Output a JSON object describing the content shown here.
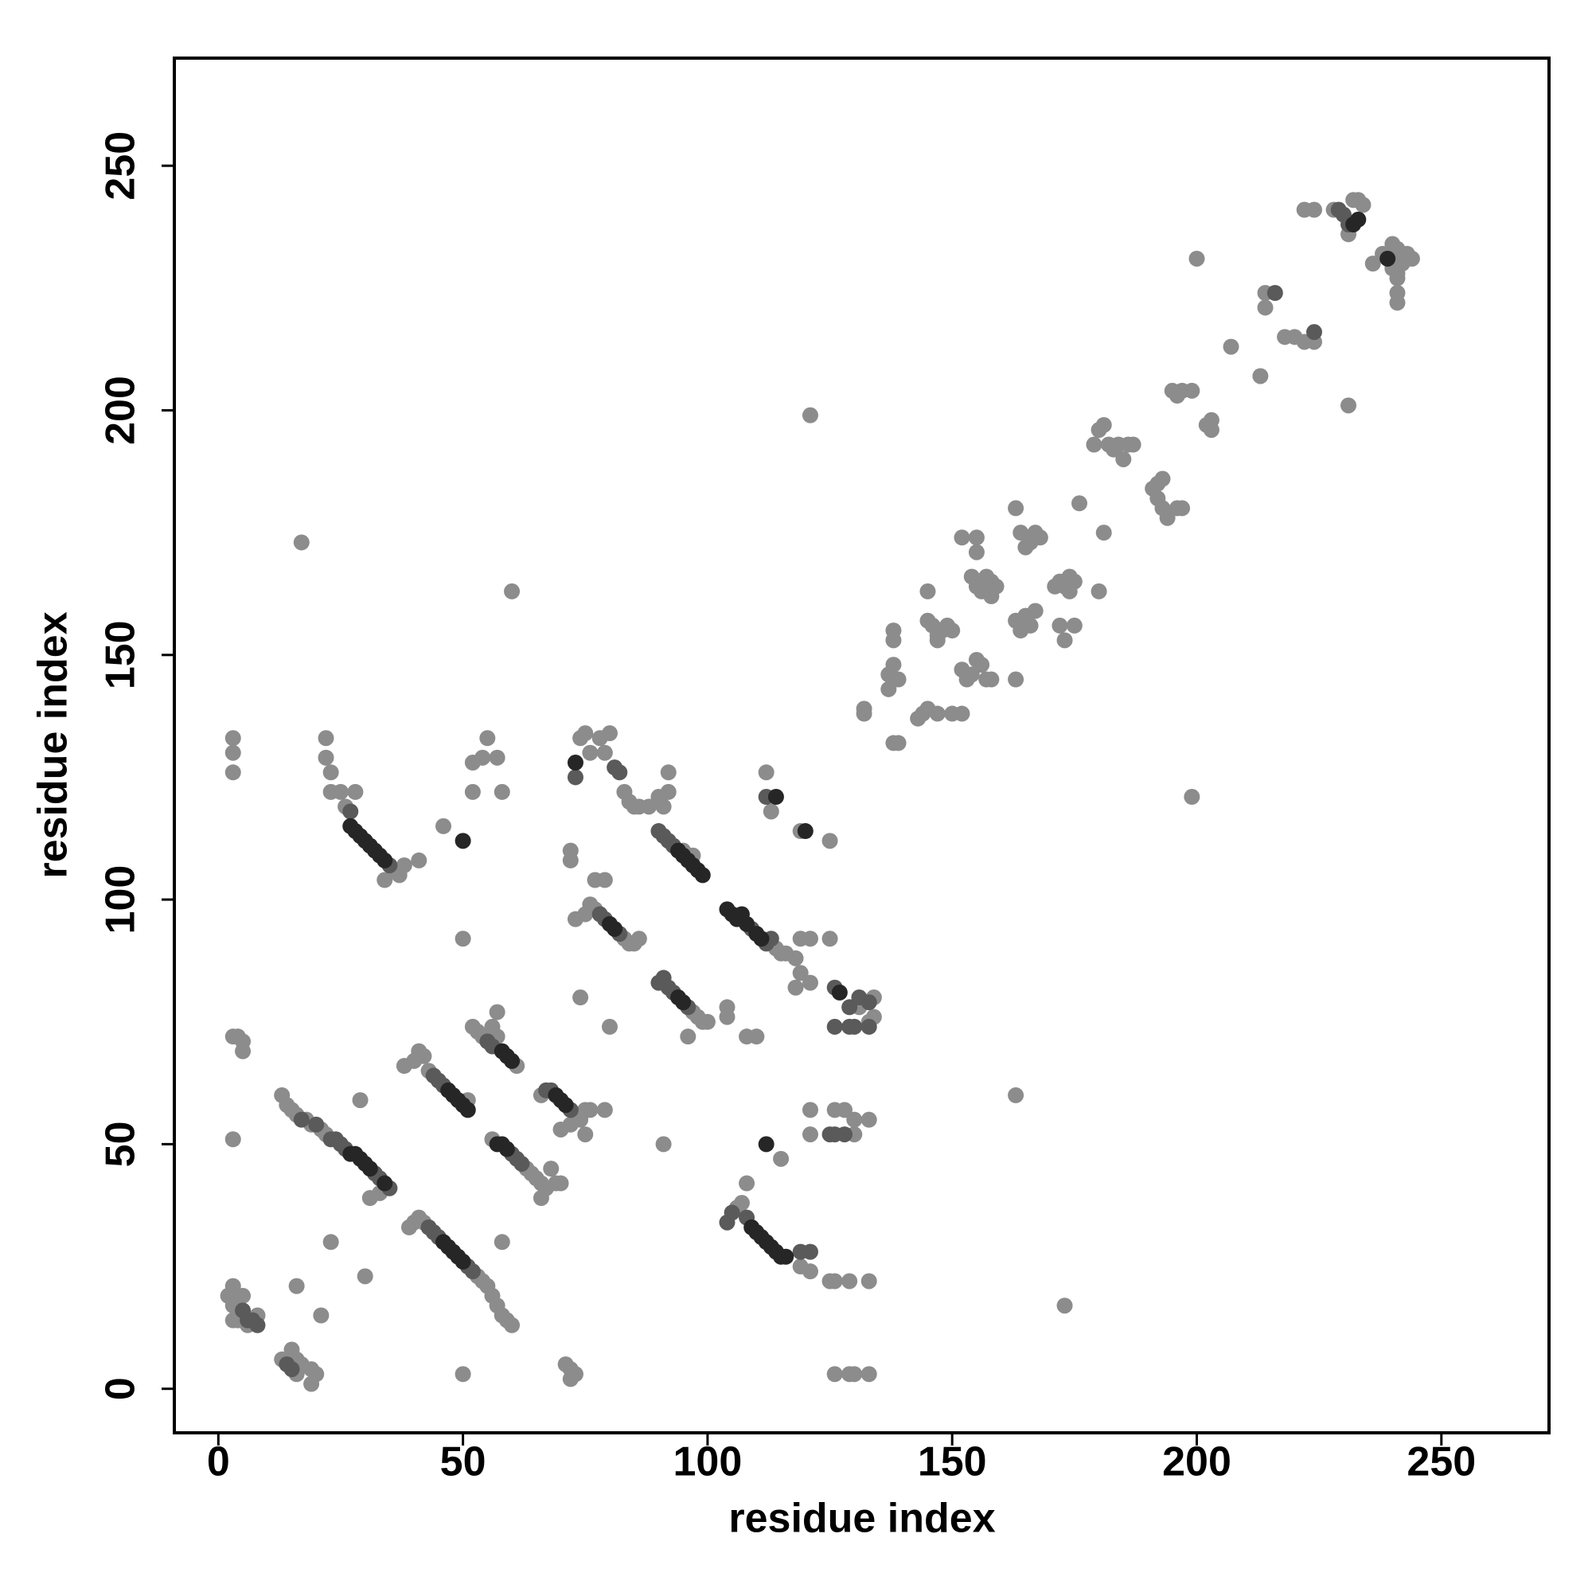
{
  "chart_data": {
    "type": "scatter",
    "xlabel": "residue index",
    "ylabel": "residue index",
    "xlim": [
      -9,
      272
    ],
    "ylim": [
      -9,
      272
    ],
    "xticks": [
      0,
      50,
      100,
      150,
      200,
      250
    ],
    "yticks": [
      0,
      50,
      100,
      150,
      200,
      250
    ],
    "series": [
      {
        "color": "#8c8c8c",
        "x": [
          2,
          3,
          3,
          4,
          4,
          5,
          3,
          6,
          8,
          13,
          15,
          16,
          16,
          15,
          17,
          19,
          19,
          20,
          16,
          21,
          23,
          30,
          3,
          4,
          5,
          5,
          3,
          13,
          14,
          15,
          16,
          18,
          19,
          21,
          22,
          33,
          31,
          29,
          3,
          3,
          3,
          22,
          22,
          23,
          23,
          25,
          26,
          36,
          37,
          38,
          34,
          28,
          41,
          46,
          39,
          40,
          41,
          42,
          53,
          54,
          55,
          56,
          57,
          58,
          59,
          60,
          58,
          50,
          38,
          40,
          41,
          42,
          43,
          51,
          52,
          53,
          54,
          57,
          61,
          57,
          56,
          50,
          56,
          63,
          64,
          65,
          66,
          67,
          68,
          69,
          70,
          66,
          66,
          73,
          74,
          75,
          76,
          79,
          72,
          70,
          75,
          52,
          52,
          54,
          55,
          57,
          58,
          71,
          72,
          73,
          72,
          72,
          72,
          73,
          74,
          80,
          75,
          76,
          77,
          83,
          84,
          85,
          86,
          77,
          79,
          74,
          75,
          76,
          78,
          79,
          80,
          83,
          84,
          85,
          86,
          88,
          90,
          91,
          92,
          92,
          95,
          97,
          97,
          98,
          99,
          100,
          96,
          91,
          114,
          115,
          116,
          104,
          104,
          108,
          110,
          112,
          113,
          119,
          125,
          119,
          121,
          118,
          119,
          121,
          118,
          125,
          131,
          134,
          134,
          133,
          106,
          107,
          108,
          115,
          119,
          121,
          125,
          126,
          129,
          133,
          121,
          126,
          128,
          130,
          133,
          121,
          130,
          126,
          129,
          130,
          133,
          17,
          60,
          132,
          132,
          138,
          139,
          137,
          137,
          138,
          138,
          138,
          139,
          143,
          144,
          145,
          147,
          150,
          152,
          145,
          145,
          146,
          147,
          148,
          149,
          150,
          147,
          152,
          153,
          154,
          155,
          156,
          157,
          158,
          152,
          155,
          155,
          154,
          155,
          156,
          157,
          158,
          159,
          158,
          163,
          163,
          164,
          165,
          166,
          167,
          163,
          164,
          165,
          166,
          167,
          168,
          171,
          172,
          173,
          174,
          175,
          174,
          172,
          173,
          175,
          176,
          180,
          181,
          179,
          180,
          181,
          182,
          183,
          184,
          185,
          186,
          187,
          191,
          192,
          193,
          192,
          193,
          194,
          196,
          197,
          195,
          196,
          197,
          199,
          200,
          202,
          203,
          203,
          199,
          163,
          173,
          121,
          207,
          213,
          214,
          214,
          218,
          220,
          222,
          224,
          222,
          224,
          228,
          230,
          231,
          232,
          233,
          234,
          231,
          236,
          238,
          240,
          240,
          241,
          241,
          241,
          241,
          242,
          243,
          244,
          240,
          241
        ],
        "values": [
          19,
          21,
          17,
          15,
          14,
          19,
          14,
          13,
          15,
          6,
          7,
          3,
          6,
          8,
          5,
          4,
          1,
          3,
          21,
          15,
          30,
          23,
          72,
          72,
          71,
          69,
          51,
          60,
          58,
          57,
          56,
          55,
          54,
          53,
          52,
          40,
          39,
          59,
          133,
          130,
          126,
          133,
          129,
          126,
          122,
          122,
          119,
          106,
          105,
          107,
          104,
          122,
          108,
          115,
          33,
          34,
          35,
          34,
          23,
          22,
          21,
          19,
          17,
          15,
          14,
          13,
          30,
          3,
          66,
          67,
          69,
          68,
          65,
          59,
          74,
          73,
          72,
          72,
          66,
          77,
          74,
          92,
          51,
          45,
          44,
          43,
          42,
          41,
          45,
          42,
          42,
          39,
          60,
          56,
          55,
          57,
          57,
          57,
          54,
          53,
          52,
          128,
          122,
          129,
          133,
          129,
          122,
          5,
          4,
          3,
          2,
          110,
          108,
          96,
          80,
          74,
          97,
          99,
          98,
          92,
          91,
          91,
          92,
          104,
          104,
          133,
          134,
          130,
          133,
          130,
          134,
          122,
          120,
          119,
          119,
          119,
          121,
          119,
          126,
          122,
          110,
          109,
          77,
          76,
          75,
          75,
          72,
          50,
          90,
          89,
          89,
          78,
          76,
          72,
          72,
          126,
          118,
          114,
          112,
          92,
          92,
          88,
          85,
          83,
          82,
          92,
          78,
          80,
          76,
          75,
          37,
          38,
          42,
          47,
          25,
          24,
          22,
          22,
          22,
          22,
          57,
          57,
          57,
          55,
          55,
          52,
          52,
          3,
          3,
          3,
          3,
          173,
          163,
          138,
          139,
          132,
          132,
          143,
          146,
          148,
          155,
          153,
          145,
          137,
          138,
          139,
          138,
          138,
          138,
          163,
          157,
          156,
          154,
          155,
          156,
          155,
          153,
          147,
          145,
          146,
          149,
          148,
          145,
          145,
          174,
          174,
          171,
          166,
          164,
          163,
          166,
          165,
          164,
          162,
          180,
          157,
          155,
          158,
          156,
          159,
          145,
          175,
          172,
          173,
          175,
          174,
          164,
          165,
          164,
          166,
          165,
          163,
          156,
          153,
          156,
          181,
          163,
          175,
          193,
          196,
          197,
          193,
          192,
          193,
          190,
          193,
          193,
          184,
          185,
          186,
          182,
          180,
          178,
          180,
          180,
          204,
          203,
          204,
          204,
          231,
          197,
          196,
          198,
          121,
          60,
          17,
          199,
          213,
          207,
          221,
          224,
          215,
          215,
          214,
          214,
          241,
          241,
          241,
          240,
          236,
          243,
          243,
          242,
          201,
          230,
          232,
          231,
          229,
          228,
          227,
          222,
          224,
          230,
          232,
          231,
          234,
          233
        ]
      },
      {
        "color": "#5a5a5a",
        "x": [
          5,
          6,
          7,
          8,
          14,
          15,
          17,
          20,
          23,
          24,
          25,
          26,
          32,
          33,
          35,
          27,
          35,
          43,
          44,
          45,
          51,
          52,
          44,
          45,
          46,
          55,
          56,
          60,
          61,
          62,
          67,
          68,
          72,
          78,
          79,
          82,
          73,
          81,
          82,
          90,
          91,
          92,
          93,
          90,
          91,
          92,
          93,
          96,
          109,
          112,
          113,
          104,
          105,
          108,
          119,
          121,
          126,
          129,
          130,
          126,
          112,
          125,
          126,
          128,
          224,
          229,
          230,
          231,
          216,
          129,
          131,
          133,
          133
        ],
        "values": [
          16,
          14,
          14,
          13,
          5,
          4,
          55,
          54,
          51,
          51,
          50,
          49,
          44,
          43,
          41,
          118,
          107,
          33,
          32,
          31,
          25,
          24,
          64,
          63,
          62,
          71,
          70,
          48,
          47,
          46,
          61,
          61,
          57,
          97,
          96,
          93,
          125,
          127,
          126,
          114,
          113,
          112,
          111,
          83,
          84,
          82,
          81,
          78,
          94,
          91,
          92,
          34,
          36,
          35,
          28,
          28,
          74,
          74,
          74,
          82,
          121,
          52,
          52,
          52,
          216,
          241,
          240,
          238,
          224,
          78,
          80,
          79,
          74
        ]
      },
      {
        "color": "#262626",
        "x": [
          27,
          28,
          29,
          30,
          31,
          34,
          27,
          28,
          29,
          30,
          31,
          32,
          33,
          34,
          46,
          47,
          48,
          49,
          50,
          47,
          48,
          49,
          50,
          51,
          58,
          59,
          60,
          57,
          58,
          59,
          69,
          70,
          71,
          94,
          95,
          96,
          97,
          98,
          99,
          104,
          105,
          106,
          107,
          108,
          110,
          111,
          109,
          110,
          111,
          112,
          113,
          114,
          115,
          116,
          50,
          112,
          120,
          232,
          233,
          239,
          80,
          81,
          94,
          95,
          73,
          127,
          114
        ],
        "values": [
          48,
          48,
          47,
          46,
          45,
          42,
          115,
          114,
          113,
          112,
          111,
          110,
          109,
          108,
          30,
          29,
          28,
          27,
          26,
          61,
          60,
          59,
          58,
          57,
          69,
          68,
          67,
          50,
          50,
          49,
          60,
          59,
          58,
          110,
          109,
          108,
          107,
          106,
          105,
          98,
          97,
          96,
          97,
          95,
          93,
          92,
          33,
          32,
          31,
          30,
          29,
          28,
          27,
          27,
          112,
          50,
          114,
          238,
          239,
          231,
          95,
          94,
          80,
          79,
          128,
          81,
          121
        ]
      }
    ]
  }
}
